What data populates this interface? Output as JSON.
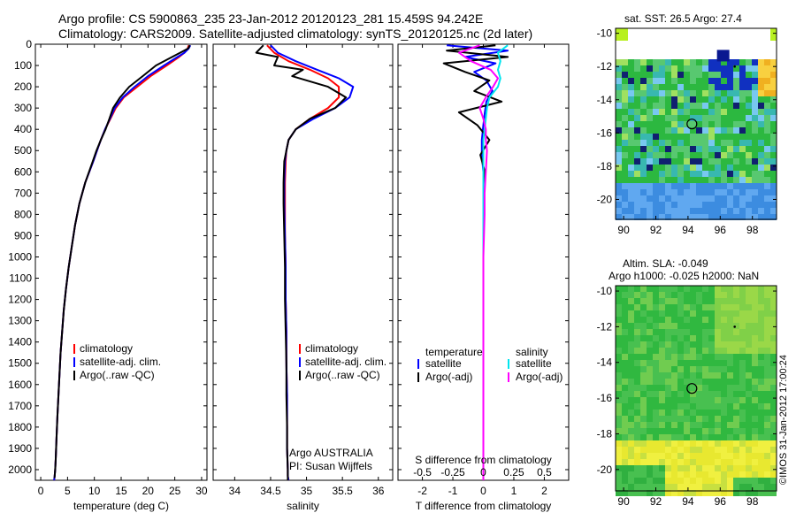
{
  "header": {
    "line1": "Argo profile: CS 5900863_235 23-Jan-2012 20120123_281 15.459S 94.242E",
    "line2": "Climatology: CARS2009. Satellite-adjusted climatology: synTS_20120125.nc (2d later)"
  },
  "stamp": "©IMOS 31-Jan-2012 17:00:24",
  "colors": {
    "climatology": "#ff0000",
    "satellite": "#0000ff",
    "argo": "#000000",
    "satellite_s": "#00e5ee",
    "argo_s": "#ff00ff"
  },
  "chart_data": [
    {
      "type": "line",
      "panel": "temperature",
      "xlabel": "temperature (deg C)",
      "ylabel": "",
      "xlim": [
        -1,
        31
      ],
      "ylim": [
        0,
        2050
      ],
      "y_reversed": true,
      "xticks": [
        0,
        5,
        10,
        15,
        20,
        25,
        30
      ],
      "yticks": [
        0,
        100,
        200,
        300,
        400,
        500,
        600,
        700,
        800,
        900,
        1000,
        1100,
        1200,
        1300,
        1400,
        1500,
        1600,
        1700,
        1800,
        1900,
        2000
      ],
      "legend": [
        "climatology",
        "satellite-adj. clim.",
        "Argo(..raw -QC)"
      ],
      "series": [
        {
          "name": "climatology",
          "color": "#ff0000",
          "x": [
            27.6,
            27.4,
            26.8,
            25.8,
            23.5,
            20.5,
            18.0,
            15.5,
            14.0,
            13.0,
            12.0,
            11.2,
            10.5,
            9.8,
            8.3,
            7.2,
            6.4,
            5.8,
            5.2,
            4.7,
            4.3,
            4.0,
            3.7,
            3.5,
            3.3,
            3.1,
            2.95,
            2.8,
            2.7,
            2.6,
            2.5
          ],
          "y": [
            5,
            20,
            40,
            60,
            100,
            150,
            200,
            250,
            300,
            350,
            400,
            450,
            500,
            550,
            650,
            750,
            850,
            950,
            1050,
            1150,
            1250,
            1350,
            1450,
            1550,
            1650,
            1750,
            1850,
            1950,
            2000,
            2030,
            2050
          ]
        },
        {
          "name": "satellite-adj. clim.",
          "color": "#0000ff",
          "x": [
            27.9,
            27.6,
            26.8,
            25.5,
            23.0,
            20.0,
            17.5,
            15.3,
            13.8,
            12.9,
            12.0,
            11.2,
            10.5,
            9.8,
            8.3,
            7.2,
            6.4,
            5.8,
            5.2,
            4.7,
            4.3,
            4.0,
            3.7,
            3.5,
            3.3,
            3.1,
            2.95,
            2.8,
            2.7,
            2.6,
            2.5
          ],
          "y": [
            5,
            20,
            40,
            60,
            100,
            150,
            200,
            250,
            300,
            350,
            400,
            450,
            500,
            550,
            650,
            750,
            850,
            950,
            1050,
            1150,
            1250,
            1350,
            1450,
            1550,
            1650,
            1750,
            1850,
            1950,
            2000,
            2030,
            2050
          ]
        },
        {
          "name": "Argo(..raw -QC)",
          "color": "#000000",
          "x": [
            27.8,
            27.5,
            26.0,
            24.5,
            21.5,
            19.0,
            16.5,
            14.8,
            13.5,
            12.8,
            12.1,
            11.2,
            10.4,
            9.7,
            8.3,
            7.2,
            6.4,
            5.8,
            5.2,
            4.7,
            4.3,
            4.0,
            3.7,
            3.5,
            3.3,
            3.1,
            2.95,
            2.8,
            2.7,
            2.6,
            2.55
          ],
          "y": [
            5,
            20,
            40,
            60,
            100,
            150,
            200,
            250,
            300,
            350,
            400,
            450,
            500,
            550,
            650,
            750,
            850,
            950,
            1050,
            1150,
            1250,
            1350,
            1450,
            1550,
            1650,
            1750,
            1850,
            1950,
            2000,
            2030,
            2040
          ]
        }
      ]
    },
    {
      "type": "line",
      "panel": "salinity",
      "xlabel": "salinity",
      "xlim": [
        33.7,
        36.2
      ],
      "ylim": [
        0,
        2050
      ],
      "y_reversed": true,
      "xticks": [
        34,
        34.5,
        35,
        35.5,
        36
      ],
      "legend": [
        "climatology",
        "satellite-adj. clim.",
        "Argo(..raw -QC)"
      ],
      "annotation": [
        "Argo AUSTRALIA",
        "PI: Susan Wijffels"
      ],
      "series": [
        {
          "name": "climatology",
          "color": "#ff0000",
          "x": [
            34.45,
            34.55,
            34.75,
            35.05,
            35.3,
            35.45,
            35.45,
            35.3,
            35.05,
            34.85,
            34.75,
            34.72,
            34.71,
            34.7,
            34.7,
            34.7,
            34.71,
            34.71,
            34.72,
            34.72,
            34.73,
            34.73,
            34.73,
            34.74,
            34.74,
            34.75
          ],
          "y": [
            5,
            40,
            80,
            120,
            160,
            200,
            250,
            300,
            350,
            400,
            450,
            500,
            550,
            650,
            750,
            900,
            1050,
            1200,
            1350,
            1500,
            1650,
            1800,
            1900,
            2000,
            2030,
            2050
          ]
        },
        {
          "name": "satellite-adj. clim.",
          "color": "#0000ff",
          "x": [
            34.5,
            34.6,
            34.85,
            35.15,
            35.45,
            35.65,
            35.6,
            35.4,
            35.1,
            34.85,
            34.75,
            34.72,
            34.7,
            34.69,
            34.69,
            34.7,
            34.71,
            34.71,
            34.72,
            34.72,
            34.73,
            34.73,
            34.73,
            34.74,
            34.74,
            34.75
          ],
          "y": [
            5,
            40,
            80,
            120,
            160,
            200,
            250,
            300,
            350,
            400,
            450,
            500,
            550,
            650,
            750,
            900,
            1050,
            1200,
            1350,
            1500,
            1650,
            1800,
            1900,
            2000,
            2030,
            2050
          ]
        },
        {
          "name": "Argo(..raw -QC)",
          "color": "#000000",
          "x": [
            34.4,
            34.3,
            34.6,
            34.55,
            34.95,
            34.8,
            35.3,
            35.55,
            35.4,
            35.05,
            34.85,
            34.75,
            34.72,
            34.69,
            34.68,
            34.68,
            34.69,
            34.7,
            34.7,
            34.71,
            34.72,
            34.72,
            34.73,
            34.73,
            34.74,
            34.74,
            34.74
          ],
          "y": [
            5,
            40,
            60,
            100,
            120,
            150,
            200,
            250,
            300,
            350,
            400,
            450,
            500,
            550,
            650,
            750,
            900,
            1050,
            1200,
            1350,
            1500,
            1650,
            1800,
            1900,
            2000,
            2030,
            2050
          ]
        }
      ]
    },
    {
      "type": "line",
      "panel": "difference",
      "xlabel": "T difference from climatology",
      "top_label": "S difference from climatology",
      "xlim": [
        -2.8,
        2.8
      ],
      "ylim": [
        0,
        2050
      ],
      "y_reversed": true,
      "xticks": [
        -2,
        -1,
        0,
        1,
        2
      ],
      "top_xtick_labels": [
        "-0.5",
        "-0.25",
        "0",
        "0.25",
        "0.5"
      ],
      "legend_groups": [
        "temperature",
        "salinity"
      ],
      "legend": [
        "satellite",
        "Argo(-adj)",
        "satellite",
        "Argo(-adj)"
      ],
      "series": [
        {
          "name": "temperature satellite",
          "color": "#0000ff",
          "x": [
            -1.2,
            0.8,
            -0.6,
            0.4,
            -0.3,
            0.1,
            0.3,
            0.1,
            0.05,
            0,
            -0.05,
            -0.05,
            0,
            0,
            0,
            0,
            0,
            0,
            0,
            0,
            0
          ],
          "y": [
            5,
            30,
            60,
            90,
            130,
            170,
            220,
            270,
            320,
            380,
            450,
            520,
            600,
            700,
            800,
            1000,
            1200,
            1400,
            1600,
            1800,
            2050
          ]
        },
        {
          "name": "temperature Argo(-adj)",
          "color": "#000000",
          "x": [
            0.4,
            -1.2,
            0.8,
            -1.3,
            -0.6,
            0.2,
            -0.3,
            0.6,
            -0.8,
            -0.2,
            0.2,
            -0.1,
            0.05,
            0,
            0,
            0,
            0,
            0,
            0,
            0,
            0
          ],
          "y": [
            5,
            30,
            60,
            90,
            130,
            170,
            220,
            270,
            320,
            380,
            450,
            520,
            600,
            700,
            800,
            1000,
            1200,
            1400,
            1600,
            1800,
            2050
          ]
        },
        {
          "name": "salinity satellite",
          "color": "#00e5ee",
          "x": [
            0.2,
            0.12,
            0.14,
            0.12,
            0.14,
            0.12,
            0.05,
            0.03,
            0.02,
            0.01,
            0,
            0,
            0,
            0,
            0,
            0,
            0,
            0,
            0,
            0
          ],
          "y": [
            5,
            40,
            80,
            120,
            160,
            200,
            250,
            300,
            350,
            400,
            450,
            500,
            600,
            700,
            800,
            1000,
            1300,
            1600,
            1900,
            2050
          ]
        },
        {
          "name": "salinity Argo(-adj)",
          "color": "#ff00ff",
          "x": [
            -0.03,
            -0.2,
            -0.1,
            0.06,
            0.12,
            0.08,
            0.02,
            -0.03,
            0.0,
            0.02,
            0.02,
            0.03,
            0.02,
            0.01,
            0.01,
            0,
            0,
            0,
            0,
            0
          ],
          "y": [
            5,
            40,
            80,
            120,
            160,
            200,
            250,
            300,
            350,
            400,
            450,
            500,
            600,
            700,
            800,
            1000,
            1300,
            1600,
            1900,
            2050
          ]
        }
      ]
    },
    {
      "type": "heatmap",
      "panel": "sst_map",
      "title": "sat. SST: 26.5 Argo: 27.4",
      "xlim": [
        89.5,
        99.5
      ],
      "ylim": [
        -21.2,
        -9.7
      ],
      "xticks": [
        90,
        92,
        94,
        96,
        98
      ],
      "yticks": [
        -10,
        -12,
        -14,
        -16,
        -18,
        -20
      ],
      "marker": {
        "lon": 94.242,
        "lat": -15.459
      }
    },
    {
      "type": "heatmap",
      "panel": "sla_map",
      "title": "Altim. SLA: -0.049",
      "subtitle": "Argo h1000: -0.025 h2000: NaN",
      "xlim": [
        89.5,
        99.5
      ],
      "ylim": [
        -21.2,
        -9.7
      ],
      "xticks": [
        90,
        92,
        94,
        96,
        98
      ],
      "yticks": [
        -10,
        -12,
        -14,
        -16,
        -18,
        -20
      ],
      "marker": {
        "lon": 94.242,
        "lat": -15.459
      }
    }
  ]
}
